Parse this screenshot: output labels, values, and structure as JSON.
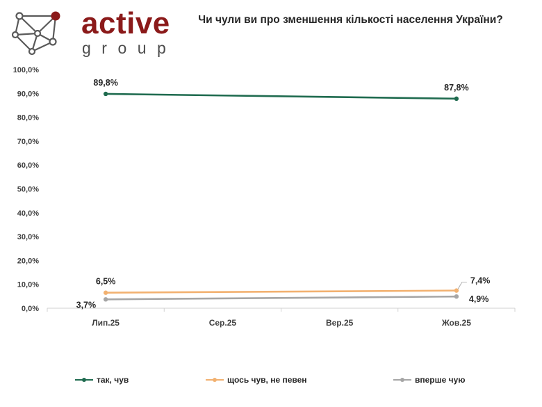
{
  "logo": {
    "word1": "active",
    "word2": "group"
  },
  "chart_data": {
    "type": "line",
    "title": "Чи чули ви про зменшення кількості населення України?",
    "categories": [
      "Лип.25",
      "Сер.25",
      "Вер.25",
      "Жов.25"
    ],
    "ylim": [
      0,
      100
    ],
    "yticks": [
      "0,0%",
      "10,0%",
      "20,0%",
      "30,0%",
      "40,0%",
      "50,0%",
      "60,0%",
      "70,0%",
      "80,0%",
      "90,0%",
      "100,0%"
    ],
    "grid": false,
    "legend_position": "bottom",
    "series": [
      {
        "name": "так, чув",
        "color": "#1f6b4f",
        "values": [
          89.8,
          null,
          null,
          87.8
        ],
        "labels": [
          "89,8%",
          "",
          "",
          "87,8%"
        ]
      },
      {
        "name": "щось чув, не певен",
        "color": "#f2b170",
        "values": [
          6.5,
          null,
          null,
          7.4
        ],
        "labels": [
          "6,5%",
          "",
          "",
          "7,4%"
        ]
      },
      {
        "name": "вперше чую",
        "color": "#a6a6a6",
        "values": [
          3.7,
          null,
          null,
          4.9
        ],
        "labels": [
          "3,7%",
          "",
          "",
          "4,9%"
        ]
      }
    ]
  }
}
